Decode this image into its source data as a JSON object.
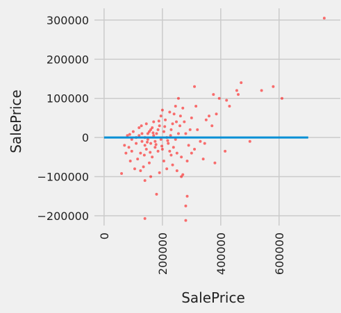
{
  "chart_data": {
    "type": "scatter",
    "xlabel": "SalePrice",
    "ylabel": "SalePrice",
    "color": "#ff0000",
    "line_color": "#008fd5",
    "line": {
      "x": [
        0,
        700000
      ],
      "values": [
        0,
        0
      ]
    },
    "xlim": [
      -33000,
      810000
    ],
    "ylim": [
      -225000,
      330000
    ],
    "xticks": [
      0,
      200000,
      400000,
      600000
    ],
    "yticks": [
      {
        "value": -200000,
        "label": "−200000"
      },
      {
        "value": -100000,
        "label": "−100000"
      },
      0,
      100000,
      200000,
      300000
    ],
    "grid": true,
    "x": [
      755000,
      610000,
      580000,
      540000,
      470000,
      455000,
      460000,
      500000,
      415000,
      395000,
      385000,
      380000,
      375000,
      310000,
      285000,
      280000,
      280000,
      140000,
      180000,
      60000,
      265000,
      340000,
      430000,
      420000,
      130000,
      150000,
      160000,
      140000,
      120000,
      175000,
      190000,
      200000,
      110000,
      95000,
      85000,
      100000,
      125000,
      145000,
      165000,
      180000,
      210000,
      220000,
      230000,
      240000,
      250000,
      260000,
      270000,
      280000,
      290000,
      300000,
      320000,
      330000,
      350000,
      360000,
      370000,
      205000,
      215000,
      235000,
      245000,
      255000,
      225000,
      195000,
      185000,
      170000,
      155000,
      135000,
      115000,
      105000,
      90000,
      75000,
      70000,
      80000,
      140000,
      150000,
      160000,
      170000,
      130000,
      120000,
      110000,
      145000,
      155000,
      165000,
      175000,
      185000,
      195000,
      205000,
      215000,
      225000,
      235000,
      245000,
      255000,
      265000,
      275000,
      285000,
      295000,
      310000,
      270000,
      250000,
      230000,
      200000,
      190000,
      160000,
      140000,
      125000,
      95000,
      88000,
      128000,
      138000,
      148000,
      158000,
      168000,
      178000,
      188000,
      198000,
      208000,
      218000,
      228000,
      238000,
      248000,
      262000,
      300000,
      315000,
      345000
    ],
    "values": [
      305000,
      100000,
      130000,
      120000,
      140000,
      120000,
      110000,
      -10000,
      -35000,
      100000,
      60000,
      -65000,
      110000,
      130000,
      -150000,
      -175000,
      -212000,
      -207000,
      -145000,
      -92000,
      -100000,
      -55000,
      80000,
      95000,
      10000,
      -5000,
      20000,
      -20000,
      5000,
      -10000,
      30000,
      -30000,
      -15000,
      -5000,
      -25000,
      15000,
      -40000,
      35000,
      -50000,
      10000,
      45000,
      -15000,
      20000,
      60000,
      -40000,
      30000,
      75000,
      10000,
      -20000,
      50000,
      20000,
      -10000,
      45000,
      55000,
      30000,
      -60000,
      -80000,
      -70000,
      80000,
      100000,
      65000,
      55000,
      -35000,
      40000,
      -65000,
      -75000,
      -55000,
      -80000,
      -60000,
      -40000,
      -20000,
      5000,
      0,
      10000,
      -15000,
      5000,
      -10000,
      25000,
      0,
      -30000,
      15000,
      25000,
      -25000,
      20000,
      -5000,
      15000,
      0,
      -35000,
      35000,
      -5000,
      10000,
      -50000,
      40000,
      -60000,
      20000,
      -30000,
      -95000,
      -85000,
      -45000,
      70000,
      -90000,
      -100000,
      -110000,
      -85000,
      -35000,
      8000,
      30000,
      -45000,
      -12000,
      -38000,
      12000,
      -18000,
      42000,
      -22000,
      28000,
      -8000,
      5000,
      -25000,
      40000,
      55000,
      -40000,
      80000,
      -15000
    ]
  }
}
